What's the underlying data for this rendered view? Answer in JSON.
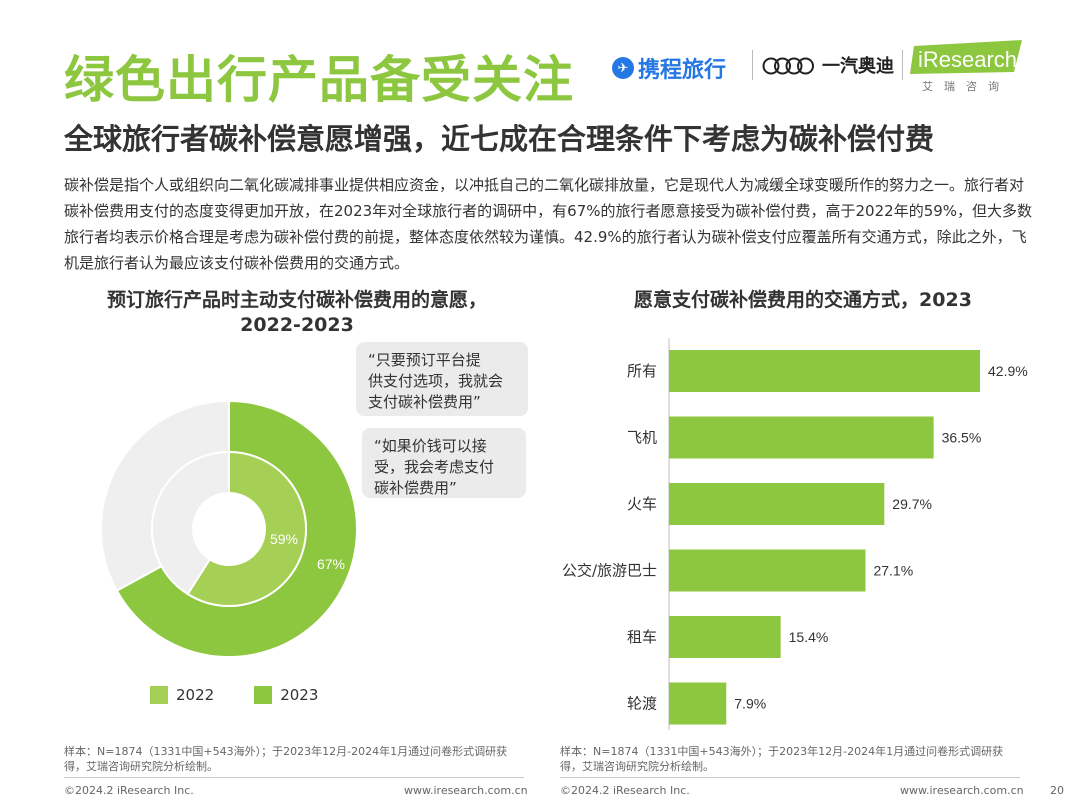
{
  "title": "绿色出行产品备受关注",
  "subtitle": "全球旅行者碳补偿意愿增强，近七成在合理条件下考虑为碳补偿付费",
  "intro": "碳补偿是指个人或组织向二氧化碳减排事业提供相应资金，以冲抵自己的二氧化碳排放量，它是现代人为减缓全球变暖所作的努力之一。旅行者对碳补偿费用支付的态度变得更加开放，在2023年对全球旅行者的调研中，有67%的旅行者愿意接受为碳补偿付费，高于2022年的59%，但大多数旅行者均表示价格合理是考虑为碳补偿付费的前提，整体态度依然较为谨慎。42.9%的旅行者认为碳补偿支付应覆盖所有交通方式，除此之外，飞机是旅行者认为最应该支付碳补偿费用的交通方式。",
  "logos": {
    "ctrip": "携程旅行",
    "audi": "一汽奥迪",
    "iresearch": "iResearch",
    "iresearch_cn": "艾瑞咨询"
  },
  "colors": {
    "green_2023": "#8dc63f",
    "green_2022": "#a6d055",
    "grey": "#efefef",
    "text": "#333333"
  },
  "chart_data": [
    {
      "type": "pie",
      "title_line1": "预订旅行产品时主动支付碳补偿费用的意愿，",
      "title_line2": "2022-2023",
      "series": [
        {
          "name": "2022",
          "value": 59,
          "label": "59%"
        },
        {
          "name": "2023",
          "value": 67,
          "label": "67%"
        }
      ],
      "legend_placement": "bottom",
      "annotations": [
        "“只要预订平台提供支付选项，我就会支付碳补偿费用”",
        "“如果价钱可以接受，我会考虑支付碳补偿费用”"
      ]
    },
    {
      "type": "bar",
      "orientation": "horizontal",
      "title": "愿意支付碳补偿费用的交通方式，2023",
      "categories": [
        "所有",
        "飞机",
        "火车",
        "公交/旅游巴士",
        "租车",
        "轮渡"
      ],
      "values": [
        42.9,
        36.5,
        29.7,
        27.1,
        15.4,
        7.9
      ],
      "value_labels": [
        "42.9%",
        "36.5%",
        "29.7%",
        "27.1%",
        "15.4%",
        "7.9%"
      ],
      "xlim": [
        0,
        42.9
      ]
    }
  ],
  "notes": {
    "left": "样本：N=1874（1331中国+543海外）；于2023年12月-2024年1月通过问卷形式调研获得，艾瑞咨询研究院分析绘制。",
    "right": "样本：N=1874（1331中国+543海外）；于2023年12月-2024年1月通过问卷形式调研获得，艾瑞咨询研究院分析绘制。"
  },
  "footer": {
    "copyright_left": "©2024.2 iResearch Inc.",
    "site_left": "www.iresearch.com.cn",
    "copyright_right": "©2024.2 iResearch Inc.",
    "site_right": "www.iresearch.com.cn",
    "page": "20"
  }
}
